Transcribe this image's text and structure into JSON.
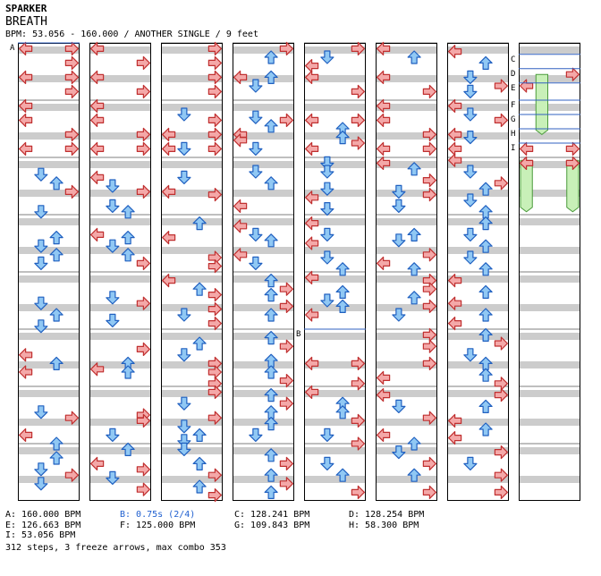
{
  "header": {
    "artist": "SPARKER",
    "title": "BREATH",
    "meta_line": "BPM: 53.056 - 160.000 / ANOTHER SINGLE / 9 feet"
  },
  "colors": {
    "left_right_arrow": "#f4a8a8",
    "left_right_stroke": "#c03030",
    "up_down_arrow": "#90c8f4",
    "up_down_stroke": "#2060c0",
    "freeze_fill": "#c8f0b8",
    "freeze_stroke": "#4a9a3a",
    "stripe": "#cccccc",
    "column_border": "#000000",
    "marker_line": "#3060c0"
  },
  "icons": {
    "left": "arrow-left-icon",
    "right": "arrow-right-icon",
    "up": "arrow-up-icon",
    "down": "arrow-down-icon",
    "freeze": "freeze-arrow-icon"
  },
  "chart_data": {
    "type": "step-chart",
    "columns": 8,
    "measures_per_column": 8,
    "total_steps": 312,
    "freeze_arrows": 3,
    "max_combo": 353,
    "markers": [
      {
        "label": "A",
        "column": 1,
        "measure": 0,
        "kind": "bpm"
      },
      {
        "label": "B",
        "column": 5,
        "measure": 5,
        "kind": "stop"
      },
      {
        "label": "C",
        "column": 8,
        "measure": 0.2,
        "kind": "bpm"
      },
      {
        "label": "D",
        "column": 8,
        "measure": 0.45,
        "kind": "bpm"
      },
      {
        "label": "E",
        "column": 8,
        "measure": 0.7,
        "kind": "bpm"
      },
      {
        "label": "F",
        "column": 8,
        "measure": 1.0,
        "kind": "bpm"
      },
      {
        "label": "G",
        "column": 8,
        "measure": 1.25,
        "kind": "bpm"
      },
      {
        "label": "H",
        "column": 8,
        "measure": 1.5,
        "kind": "bpm"
      },
      {
        "label": "I",
        "column": 8,
        "measure": 1.75,
        "kind": "bpm"
      }
    ],
    "column_notes": [
      [
        [
          0.1,
          0
        ],
        [
          0.1,
          3
        ],
        [
          0.35,
          3
        ],
        [
          0.6,
          0
        ],
        [
          0.6,
          3
        ],
        [
          0.85,
          3
        ],
        [
          1.1,
          0
        ],
        [
          1.35,
          0
        ],
        [
          1.6,
          3
        ],
        [
          1.85,
          0
        ],
        [
          1.85,
          3
        ],
        [
          2.3,
          1
        ],
        [
          2.45,
          2
        ],
        [
          2.6,
          3
        ],
        [
          2.95,
          1
        ],
        [
          3.4,
          2
        ],
        [
          3.55,
          1
        ],
        [
          3.7,
          2
        ],
        [
          3.85,
          1
        ],
        [
          4.55,
          1
        ],
        [
          4.75,
          2
        ],
        [
          4.95,
          1
        ],
        [
          5.45,
          0
        ],
        [
          5.6,
          2
        ],
        [
          5.75,
          0
        ],
        [
          6.45,
          1
        ],
        [
          6.55,
          3
        ],
        [
          6.85,
          0
        ],
        [
          7.0,
          2
        ],
        [
          7.25,
          2
        ],
        [
          7.45,
          1
        ],
        [
          7.55,
          3
        ],
        [
          7.7,
          1
        ]
      ],
      [
        [
          0.1,
          0
        ],
        [
          0.35,
          3
        ],
        [
          0.6,
          0
        ],
        [
          0.85,
          3
        ],
        [
          1.1,
          0
        ],
        [
          1.35,
          0
        ],
        [
          1.6,
          3
        ],
        [
          1.85,
          0
        ],
        [
          1.85,
          3
        ],
        [
          2.35,
          0
        ],
        [
          2.5,
          1
        ],
        [
          2.6,
          3
        ],
        [
          2.85,
          1
        ],
        [
          2.95,
          2
        ],
        [
          3.35,
          0
        ],
        [
          3.4,
          2
        ],
        [
          3.55,
          1
        ],
        [
          3.7,
          2
        ],
        [
          3.85,
          3
        ],
        [
          4.45,
          1
        ],
        [
          4.55,
          3
        ],
        [
          4.85,
          1
        ],
        [
          5.35,
          3
        ],
        [
          5.6,
          2
        ],
        [
          5.7,
          0
        ],
        [
          5.75,
          2
        ],
        [
          6.5,
          3
        ],
        [
          6.6,
          3
        ],
        [
          6.85,
          1
        ],
        [
          7.1,
          2
        ],
        [
          7.35,
          0
        ],
        [
          7.45,
          3
        ],
        [
          7.6,
          1
        ],
        [
          7.8,
          3
        ]
      ],
      [
        [
          0.1,
          3
        ],
        [
          0.35,
          3
        ],
        [
          0.6,
          3
        ],
        [
          0.85,
          3
        ],
        [
          1.25,
          1
        ],
        [
          1.35,
          3
        ],
        [
          1.6,
          0
        ],
        [
          1.85,
          0
        ],
        [
          1.85,
          3
        ],
        [
          1.6,
          3
        ],
        [
          1.85,
          1
        ],
        [
          2.35,
          1
        ],
        [
          2.6,
          0
        ],
        [
          2.65,
          3
        ],
        [
          3.15,
          2
        ],
        [
          3.4,
          0
        ],
        [
          3.75,
          3
        ],
        [
          3.9,
          3
        ],
        [
          4.15,
          0
        ],
        [
          4.3,
          2
        ],
        [
          4.4,
          3
        ],
        [
          4.65,
          3
        ],
        [
          4.75,
          1
        ],
        [
          4.9,
          3
        ],
        [
          5.25,
          2
        ],
        [
          5.45,
          1
        ],
        [
          5.6,
          3
        ],
        [
          5.75,
          3
        ],
        [
          5.95,
          3
        ],
        [
          6.1,
          3
        ],
        [
          6.3,
          1
        ],
        [
          6.55,
          3
        ],
        [
          6.7,
          1
        ],
        [
          6.85,
          2
        ],
        [
          6.95,
          1
        ],
        [
          7.1,
          1
        ],
        [
          7.35,
          2
        ],
        [
          7.55,
          3
        ],
        [
          7.75,
          2
        ],
        [
          7.9,
          3
        ]
      ],
      [
        [
          0.1,
          3
        ],
        [
          0.25,
          2
        ],
        [
          0.6,
          0
        ],
        [
          0.6,
          2
        ],
        [
          0.75,
          1
        ],
        [
          1.3,
          1
        ],
        [
          1.35,
          3
        ],
        [
          1.45,
          2
        ],
        [
          1.6,
          0
        ],
        [
          1.7,
          0
        ],
        [
          1.85,
          1
        ],
        [
          2.25,
          1
        ],
        [
          2.45,
          2
        ],
        [
          2.85,
          0
        ],
        [
          3.2,
          0
        ],
        [
          3.35,
          1
        ],
        [
          3.45,
          2
        ],
        [
          3.7,
          0
        ],
        [
          3.85,
          1
        ],
        [
          4.15,
          2
        ],
        [
          4.3,
          3
        ],
        [
          4.4,
          2
        ],
        [
          4.6,
          3
        ],
        [
          4.75,
          2
        ],
        [
          5.15,
          2
        ],
        [
          5.3,
          3
        ],
        [
          5.55,
          2
        ],
        [
          5.75,
          2
        ],
        [
          5.9,
          3
        ],
        [
          6.15,
          2
        ],
        [
          6.3,
          3
        ],
        [
          6.45,
          2
        ],
        [
          6.65,
          2
        ],
        [
          6.85,
          1
        ],
        [
          7.2,
          2
        ],
        [
          7.35,
          3
        ],
        [
          7.55,
          2
        ],
        [
          7.7,
          3
        ],
        [
          7.85,
          2
        ]
      ],
      [
        [
          0.1,
          3
        ],
        [
          0.25,
          1
        ],
        [
          0.4,
          0
        ],
        [
          0.6,
          0
        ],
        [
          0.85,
          3
        ],
        [
          1.35,
          0
        ],
        [
          1.35,
          3
        ],
        [
          1.5,
          2
        ],
        [
          1.65,
          2
        ],
        [
          1.85,
          0
        ],
        [
          1.75,
          3
        ],
        [
          2.1,
          1
        ],
        [
          2.25,
          1
        ],
        [
          2.55,
          1
        ],
        [
          2.7,
          0
        ],
        [
          2.9,
          1
        ],
        [
          3.15,
          0
        ],
        [
          3.35,
          1
        ],
        [
          3.5,
          0
        ],
        [
          3.75,
          1
        ],
        [
          3.95,
          2
        ],
        [
          4.1,
          0
        ],
        [
          4.35,
          2
        ],
        [
          4.5,
          1
        ],
        [
          4.6,
          2
        ],
        [
          4.75,
          0
        ],
        [
          5.6,
          0
        ],
        [
          5.6,
          3
        ],
        [
          5.95,
          3
        ],
        [
          6.1,
          0
        ],
        [
          6.3,
          2
        ],
        [
          6.45,
          2
        ],
        [
          6.6,
          3
        ],
        [
          6.85,
          1
        ],
        [
          7.0,
          3
        ],
        [
          7.35,
          1
        ],
        [
          7.55,
          2
        ],
        [
          7.85,
          3
        ]
      ],
      [
        [
          0.1,
          0
        ],
        [
          0.25,
          2
        ],
        [
          0.6,
          0
        ],
        [
          0.85,
          3
        ],
        [
          1.1,
          0
        ],
        [
          1.35,
          0
        ],
        [
          1.6,
          3
        ],
        [
          1.85,
          0
        ],
        [
          1.85,
          3
        ],
        [
          2.1,
          0
        ],
        [
          2.2,
          2
        ],
        [
          2.4,
          3
        ],
        [
          2.6,
          1
        ],
        [
          2.65,
          3
        ],
        [
          2.85,
          1
        ],
        [
          3.35,
          2
        ],
        [
          3.45,
          1
        ],
        [
          3.7,
          3
        ],
        [
          3.85,
          0
        ],
        [
          3.95,
          2
        ],
        [
          4.15,
          3
        ],
        [
          4.3,
          3
        ],
        [
          4.45,
          2
        ],
        [
          4.6,
          3
        ],
        [
          4.75,
          1
        ],
        [
          5.1,
          3
        ],
        [
          5.3,
          3
        ],
        [
          5.6,
          3
        ],
        [
          5.85,
          0
        ],
        [
          6.15,
          0
        ],
        [
          6.35,
          1
        ],
        [
          6.55,
          3
        ],
        [
          6.85,
          0
        ],
        [
          7.0,
          2
        ],
        [
          7.15,
          1
        ],
        [
          7.35,
          3
        ],
        [
          7.55,
          2
        ],
        [
          7.85,
          3
        ]
      ],
      [
        [
          0.15,
          0
        ],
        [
          0.35,
          2
        ],
        [
          0.6,
          1
        ],
        [
          0.75,
          3
        ],
        [
          0.85,
          1
        ],
        [
          1.1,
          0
        ],
        [
          1.25,
          1
        ],
        [
          1.35,
          3
        ],
        [
          1.6,
          0
        ],
        [
          1.65,
          1
        ],
        [
          1.85,
          0
        ],
        [
          2.05,
          0
        ],
        [
          2.25,
          1
        ],
        [
          2.45,
          3
        ],
        [
          2.55,
          2
        ],
        [
          2.75,
          1
        ],
        [
          2.95,
          2
        ],
        [
          3.15,
          2
        ],
        [
          3.35,
          1
        ],
        [
          3.55,
          2
        ],
        [
          3.75,
          1
        ],
        [
          3.95,
          2
        ],
        [
          4.15,
          0
        ],
        [
          4.35,
          2
        ],
        [
          4.55,
          0
        ],
        [
          4.75,
          2
        ],
        [
          4.9,
          0
        ],
        [
          5.1,
          2
        ],
        [
          5.25,
          3
        ],
        [
          5.45,
          1
        ],
        [
          5.6,
          2
        ],
        [
          5.8,
          2
        ],
        [
          5.95,
          3
        ],
        [
          6.15,
          3
        ],
        [
          6.35,
          2
        ],
        [
          6.6,
          0
        ],
        [
          6.75,
          2
        ],
        [
          6.9,
          0
        ],
        [
          7.15,
          3
        ],
        [
          7.35,
          1
        ],
        [
          7.55,
          3
        ],
        [
          7.85,
          3
        ]
      ],
      [
        [
          0.55,
          3
        ],
        [
          0.75,
          0
        ],
        [
          1.85,
          0
        ],
        [
          1.85,
          3
        ],
        [
          2.1,
          0
        ],
        [
          2.1,
          3
        ]
      ]
    ],
    "freezes": [
      {
        "column": 8,
        "lane": 1,
        "start": 0.55,
        "end": 1.6
      },
      {
        "column": 8,
        "lane": 0,
        "start": 2.05,
        "end": 2.95
      },
      {
        "column": 8,
        "lane": 3,
        "start": 2.05,
        "end": 2.95
      }
    ]
  },
  "legend": [
    [
      {
        "text": "A: 160.000 BPM",
        "kind": "bpm"
      },
      {
        "text": "B: 0.75s (2/4)",
        "kind": "stop"
      },
      {
        "text": "C: 128.241 BPM",
        "kind": "bpm"
      },
      {
        "text": "D: 128.254 BPM",
        "kind": "bpm"
      }
    ],
    [
      {
        "text": "E: 126.663 BPM",
        "kind": "bpm"
      },
      {
        "text": "F: 125.000 BPM",
        "kind": "bpm"
      },
      {
        "text": "G: 109.843 BPM",
        "kind": "bpm"
      },
      {
        "text": "H: 58.300 BPM",
        "kind": "bpm"
      }
    ],
    [
      {
        "text": "I: 53.056 BPM",
        "kind": "bpm"
      }
    ]
  ],
  "stats_line": "312 steps, 3 freeze arrows, max combo 353"
}
